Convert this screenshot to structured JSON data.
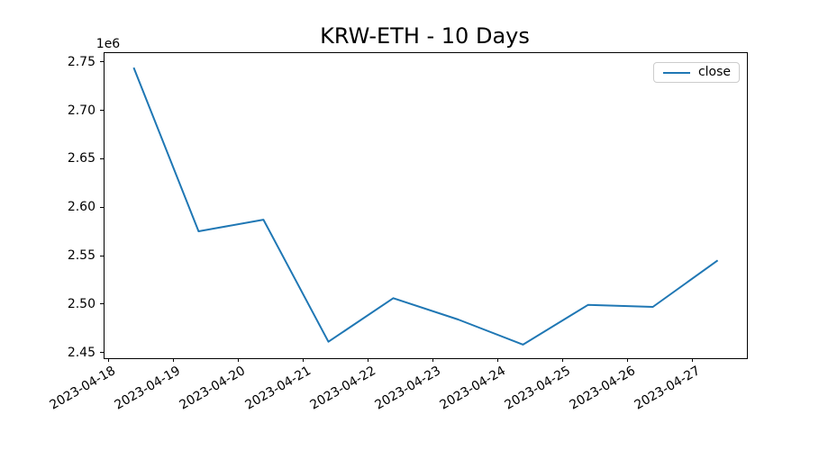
{
  "chart_data": {
    "type": "line",
    "title": "KRW-ETH - 10 Days",
    "xlabel": "",
    "ylabel": "",
    "categories": [
      "2023-04-18",
      "2023-04-19",
      "2023-04-20",
      "2023-04-21",
      "2023-04-22",
      "2023-04-23",
      "2023-04-24",
      "2023-04-25",
      "2023-04-26",
      "2023-04-27"
    ],
    "series": [
      {
        "name": "close",
        "color": "#1f77b4",
        "values": [
          2745000,
          2576000,
          2588000,
          2462000,
          2507000,
          2485000,
          2459000,
          2500000,
          2498000,
          2546000
        ]
      }
    ],
    "ylim": [
      2445000,
      2760000
    ],
    "yticks": [
      2450000,
      2500000,
      2550000,
      2600000,
      2650000,
      2700000,
      2750000
    ],
    "ytick_labels": [
      "2.45",
      "2.50",
      "2.55",
      "2.60",
      "2.65",
      "2.70",
      "2.75"
    ],
    "offset_label": "1e6",
    "x_tick_rotation_deg": -30,
    "x_data_offset_days": 0.375,
    "x_margin_days": 0.45,
    "legend_position": "upper right",
    "grid": false,
    "axis_color": "#000000",
    "background_color": "#ffffff"
  }
}
